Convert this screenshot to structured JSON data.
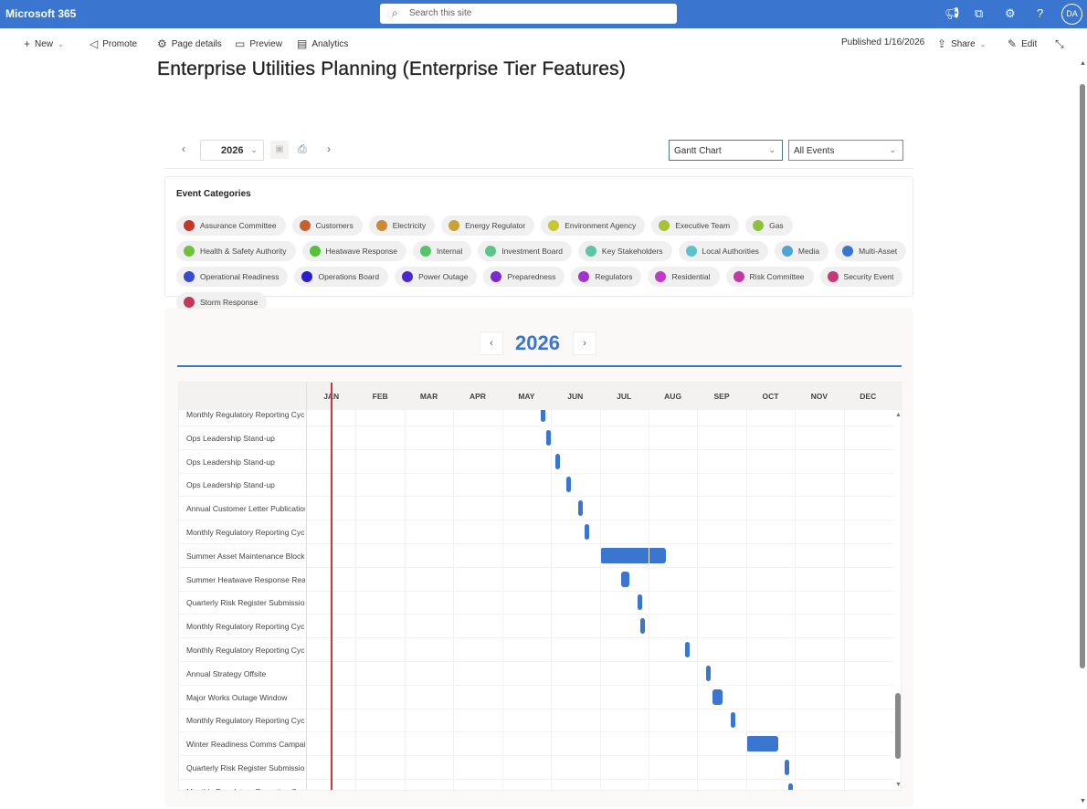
{
  "topbar": {
    "brand": "Microsoft 365",
    "search_placeholder": "Search this site",
    "avatar": "DA",
    "icons": [
      "megaphone-icon",
      "apps-icon",
      "settings-icon",
      "help-icon"
    ]
  },
  "commandbar": {
    "new": "New",
    "promote": "Promote",
    "page_details": "Page details",
    "preview": "Preview",
    "analytics": "Analytics",
    "published": "Published 1/16/2026",
    "share": "Share",
    "edit": "Edit"
  },
  "page": {
    "title": "Enterprise Utilities Planning (Enterprise Tier Features)"
  },
  "toolbar": {
    "year": "2026",
    "view": "Gantt Chart",
    "filter": "All Events"
  },
  "categories": {
    "title": "Event Categories",
    "items": [
      {
        "label": "Assurance Committee",
        "color": "#c0392b"
      },
      {
        "label": "Customers",
        "color": "#c8602e"
      },
      {
        "label": "Electricity",
        "color": "#cc8a32"
      },
      {
        "label": "Energy Regulator",
        "color": "#c9a233"
      },
      {
        "label": "Environment Agency",
        "color": "#c7c733"
      },
      {
        "label": "Executive Team",
        "color": "#a8c233"
      },
      {
        "label": "Gas",
        "color": "#8cc23a"
      },
      {
        "label": "Health & Safety Authority",
        "color": "#6cc23a"
      },
      {
        "label": "Heatwave Response",
        "color": "#52c23a"
      },
      {
        "label": "Internal",
        "color": "#55c468"
      },
      {
        "label": "Investment Board",
        "color": "#5cc488"
      },
      {
        "label": "Key Stakeholders",
        "color": "#5cc4a8"
      },
      {
        "label": "Local Authorities",
        "color": "#5cc4c8"
      },
      {
        "label": "Media",
        "color": "#4ea4d4"
      },
      {
        "label": "Multi-Asset",
        "color": "#3a76cf"
      },
      {
        "label": "Operational Readiness",
        "color": "#3a4acf"
      },
      {
        "label": "Operations Board",
        "color": "#2a1ecf"
      },
      {
        "label": "Power Outage",
        "color": "#4a28cf"
      },
      {
        "label": "Preparedness",
        "color": "#7a2acf"
      },
      {
        "label": "Regulators",
        "color": "#a033cf"
      },
      {
        "label": "Residential",
        "color": "#c23ac8"
      },
      {
        "label": "Risk Committee",
        "color": "#c23aa0"
      },
      {
        "label": "Security Event",
        "color": "#c23a78"
      },
      {
        "label": "Storm Response",
        "color": "#c03a55"
      }
    ]
  },
  "gantt": {
    "year": "2026",
    "months": [
      "JAN",
      "FEB",
      "MAR",
      "APR",
      "MAY",
      "JUN",
      "JUL",
      "AUG",
      "SEP",
      "OCT",
      "NOV",
      "DEC"
    ],
    "today": "2026-01-16",
    "bar_color": "#3a76cf",
    "rows": [
      {
        "label": "Monthly Regulatory Reporting Cycle",
        "start": "2026-05-27",
        "end": "2026-05-27"
      },
      {
        "label": "Ops Leadership Stand-up",
        "start": "2026-05-30",
        "end": "2026-05-30"
      },
      {
        "label": "Ops Leadership Stand-up",
        "start": "2026-06-05",
        "end": "2026-06-05"
      },
      {
        "label": "Ops Leadership Stand-up",
        "start": "2026-06-12",
        "end": "2026-06-12"
      },
      {
        "label": "Annual Customer Letter Publication",
        "start": "2026-06-19",
        "end": "2026-06-19"
      },
      {
        "label": "Monthly Regulatory Reporting Cycle",
        "start": "2026-06-23",
        "end": "2026-06-23"
      },
      {
        "label": "Summer Asset Maintenance Block",
        "start": "2026-07-03",
        "end": "2026-08-12"
      },
      {
        "label": "Summer Heatwave Response Readiness",
        "start": "2026-07-16",
        "end": "2026-07-20"
      },
      {
        "label": "Quarterly Risk Register Submission",
        "start": "2026-07-26",
        "end": "2026-07-26"
      },
      {
        "label": "Monthly Regulatory Reporting Cycle",
        "start": "2026-07-28",
        "end": "2026-07-28"
      },
      {
        "label": "Monthly Regulatory Reporting Cycle",
        "start": "2026-08-25",
        "end": "2026-08-25"
      },
      {
        "label": "Annual Strategy Offsite",
        "start": "2026-09-07",
        "end": "2026-09-07"
      },
      {
        "label": "Major Works Outage Window",
        "start": "2026-09-11",
        "end": "2026-09-16"
      },
      {
        "label": "Monthly Regulatory Reporting Cycle",
        "start": "2026-09-22",
        "end": "2026-09-22"
      },
      {
        "label": "Winter Readiness Comms Campaign",
        "start": "2026-10-02",
        "end": "2026-10-21"
      },
      {
        "label": "Quarterly Risk Register Submission",
        "start": "2026-10-26",
        "end": "2026-10-26"
      },
      {
        "label": "Monthly Regulatory Reporting Cycle",
        "start": "2026-10-28",
        "end": "2026-10-28"
      }
    ]
  }
}
